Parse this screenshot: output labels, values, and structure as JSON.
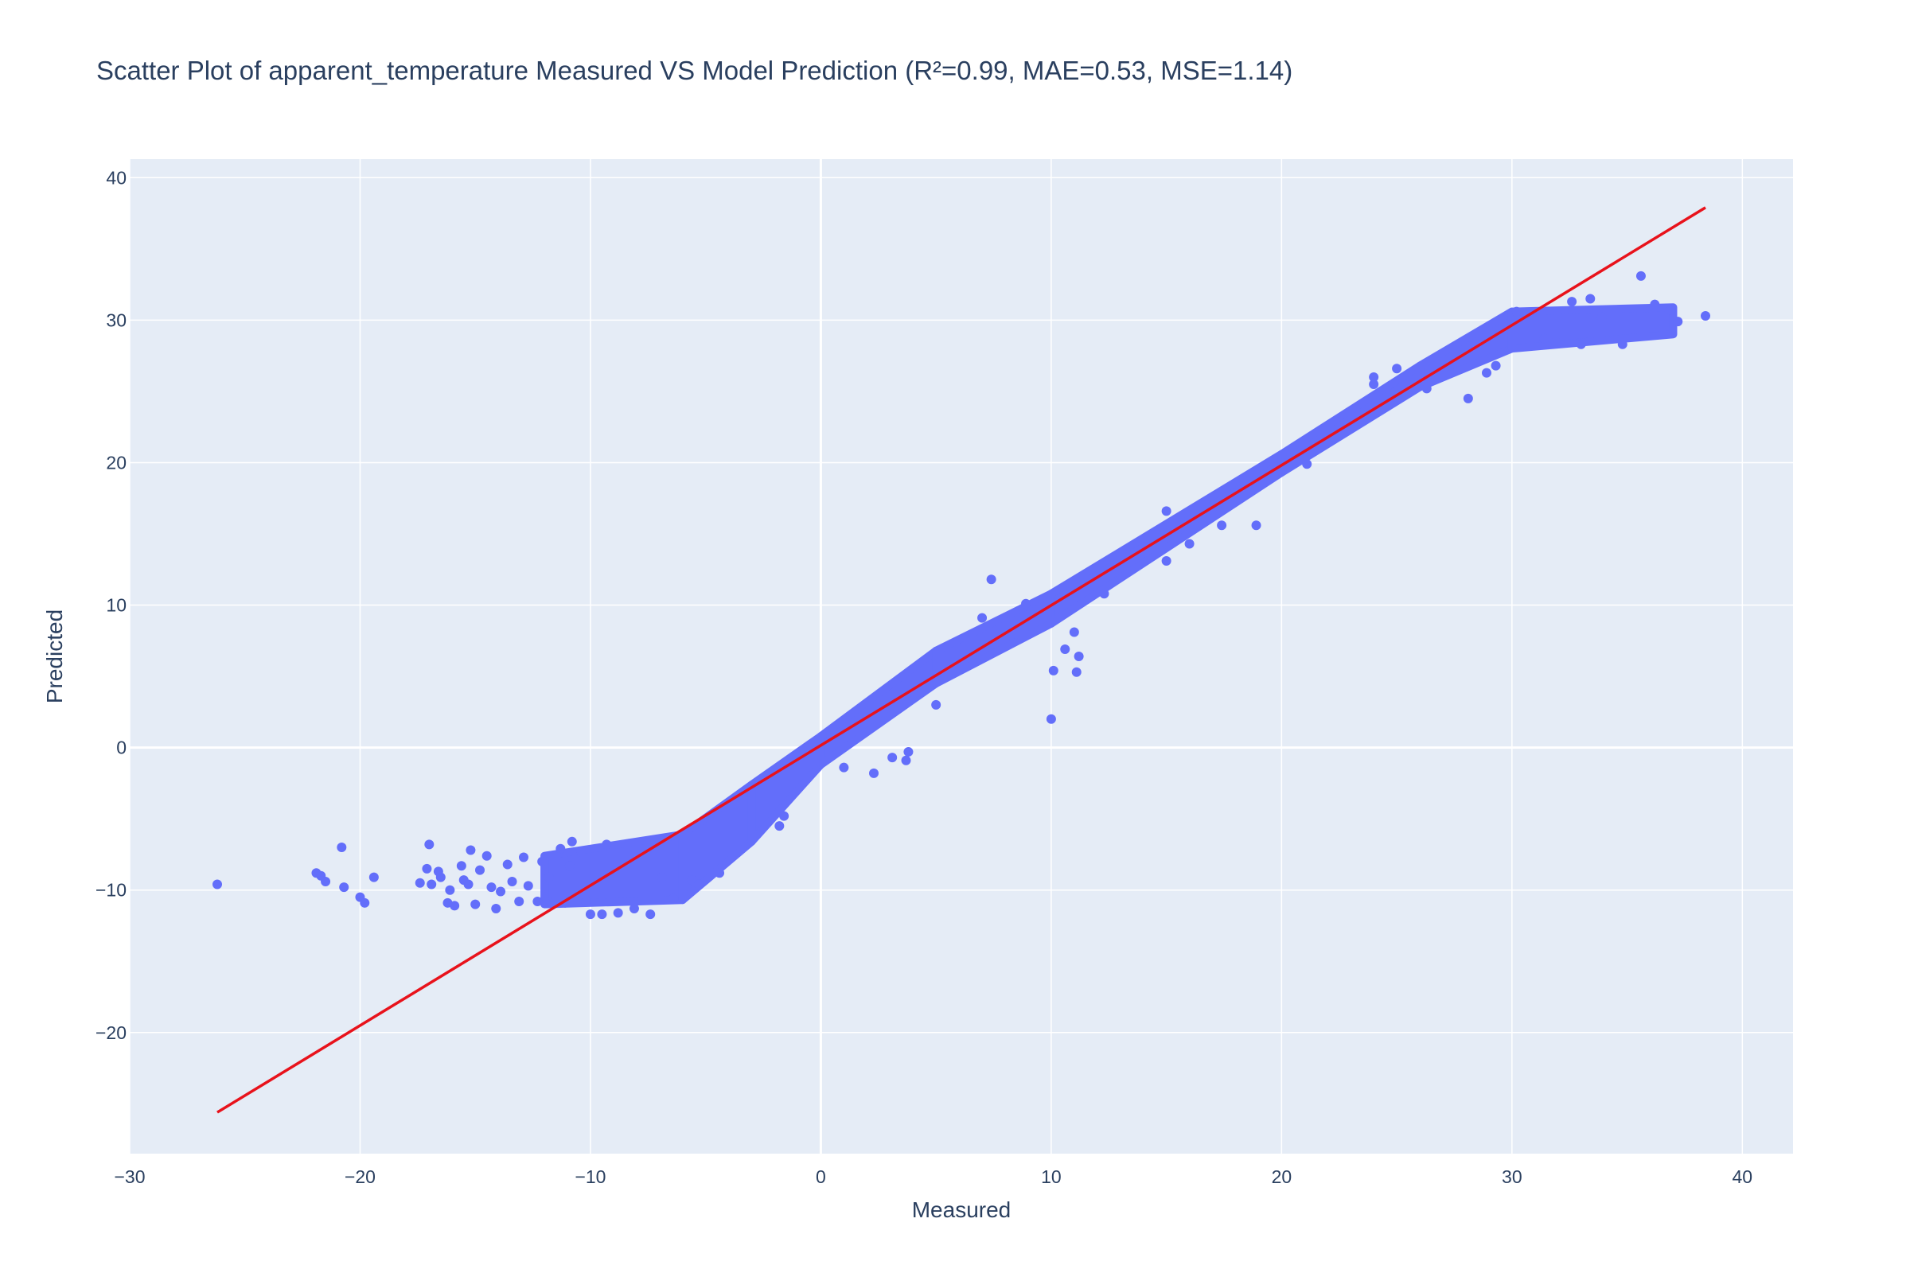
{
  "chart_data": {
    "type": "scatter",
    "title": "Scatter Plot of apparent_temperature Measured VS Model Prediction (R²=0.99, MAE=0.53, MSE=1.14)",
    "xlabel": "Measured",
    "ylabel": "Predicted",
    "xlim": [
      -30,
      42.2
    ],
    "ylim": [
      -28.5,
      41.3
    ],
    "x_ticks": [
      -30,
      -20,
      -10,
      0,
      10,
      20,
      30,
      40
    ],
    "y_ticks": [
      -20,
      -10,
      0,
      10,
      20,
      30,
      40
    ],
    "grid": true,
    "legend": "none",
    "colors": {
      "points": "#636efa",
      "line": "#e8121b",
      "plot_background": "#e5ecf6",
      "grid": "#ffffff",
      "text": "#2a3f5f"
    },
    "series": [
      {
        "kind": "points",
        "points": [
          [
            -26.2,
            -9.6
          ],
          [
            -21.9,
            -8.8
          ],
          [
            -21.7,
            -9.0
          ],
          [
            -21.5,
            -9.4
          ],
          [
            -20.8,
            -7.0
          ],
          [
            -20.7,
            -9.8
          ],
          [
            -20.0,
            -10.5
          ],
          [
            -19.8,
            -10.9
          ],
          [
            -19.4,
            -9.1
          ],
          [
            -17.4,
            -9.5
          ],
          [
            -17.1,
            -8.5
          ],
          [
            -17.0,
            -6.8
          ],
          [
            -16.9,
            -9.6
          ],
          [
            -16.6,
            -8.7
          ],
          [
            -16.5,
            -9.1
          ],
          [
            -16.2,
            -10.9
          ],
          [
            -16.1,
            -10.0
          ],
          [
            -15.9,
            -11.1
          ],
          [
            -15.6,
            -8.3
          ],
          [
            -15.5,
            -9.3
          ],
          [
            -15.3,
            -9.6
          ],
          [
            -15.2,
            -7.2
          ],
          [
            -15.0,
            -11.0
          ],
          [
            -14.8,
            -8.6
          ],
          [
            -14.5,
            -7.6
          ],
          [
            -14.3,
            -9.8
          ],
          [
            -14.1,
            -11.3
          ],
          [
            -13.9,
            -10.1
          ],
          [
            -13.6,
            -8.2
          ],
          [
            -13.4,
            -9.4
          ],
          [
            -13.1,
            -10.8
          ],
          [
            -12.9,
            -7.7
          ],
          [
            -12.7,
            -9.7
          ],
          [
            -12.3,
            -10.8
          ],
          [
            -12.1,
            -8.0
          ],
          [
            -11.8,
            -9.1
          ],
          [
            -11.5,
            -10.5
          ],
          [
            -11.3,
            -7.1
          ],
          [
            -11.1,
            -10.9
          ],
          [
            -10.9,
            -8.3
          ],
          [
            -10.8,
            -6.6
          ],
          [
            -10.4,
            -7.3
          ],
          [
            -10.2,
            -10.8
          ],
          [
            -10.0,
            -11.7
          ],
          [
            -9.5,
            -11.7
          ],
          [
            -9.3,
            -6.8
          ],
          [
            -8.8,
            -11.6
          ],
          [
            -8.1,
            -11.3
          ],
          [
            -7.4,
            -11.7
          ],
          [
            -6.9,
            -9.1
          ],
          [
            -6.4,
            -10.6
          ],
          [
            -5.6,
            -9.3
          ],
          [
            -5.3,
            -9.6
          ],
          [
            -4.4,
            -8.8
          ],
          [
            -1.8,
            -5.5
          ],
          [
            -1.6,
            -4.8
          ],
          [
            1.0,
            -1.4
          ],
          [
            2.3,
            -1.8
          ],
          [
            3.1,
            -0.7
          ],
          [
            3.7,
            -0.9
          ],
          [
            3.8,
            -0.3
          ],
          [
            5.0,
            3.0
          ],
          [
            7.0,
            9.1
          ],
          [
            7.4,
            11.8
          ],
          [
            8.9,
            10.1
          ],
          [
            10.0,
            2.0
          ],
          [
            10.1,
            5.4
          ],
          [
            10.6,
            6.9
          ],
          [
            11.0,
            8.1
          ],
          [
            11.1,
            5.3
          ],
          [
            11.2,
            6.4
          ],
          [
            12.3,
            10.8
          ],
          [
            15.0,
            13.1
          ],
          [
            15.0,
            16.6
          ],
          [
            16.0,
            14.3
          ],
          [
            17.4,
            15.6
          ],
          [
            18.9,
            15.6
          ],
          [
            21.1,
            19.9
          ],
          [
            22.3,
            21.8
          ],
          [
            24.0,
            26.0
          ],
          [
            24.0,
            25.5
          ],
          [
            24.9,
            24.9
          ],
          [
            25.0,
            26.6
          ],
          [
            26.3,
            25.2
          ],
          [
            28.1,
            24.5
          ],
          [
            28.9,
            26.3
          ],
          [
            29.3,
            26.8
          ],
          [
            30.2,
            30.6
          ],
          [
            31.4,
            28.7
          ],
          [
            31.9,
            28.5
          ],
          [
            32.6,
            31.3
          ],
          [
            33.0,
            28.3
          ],
          [
            33.4,
            31.5
          ],
          [
            33.9,
            30.2
          ],
          [
            34.8,
            28.3
          ],
          [
            35.6,
            33.1
          ],
          [
            36.2,
            31.1
          ],
          [
            36.9,
            30.7
          ],
          [
            37.2,
            29.9
          ],
          [
            38.4,
            30.3
          ]
        ],
        "bands": [
          {
            "x_from": -12.0,
            "x_to": -6.0,
            "y_low_from": -11.0,
            "y_low_to": -10.7,
            "y_high_from": -7.6,
            "y_high_to": -6.1
          },
          {
            "x_from": -6.0,
            "x_to": -3.0,
            "y_low_from": -10.7,
            "y_low_to": -6.6,
            "y_high_from": -6.1,
            "y_high_to": -2.6
          },
          {
            "x_from": -3.0,
            "x_to": 0.0,
            "y_low_from": -6.6,
            "y_low_to": -1.2,
            "y_high_from": -2.6,
            "y_high_to": 0.8
          },
          {
            "x_from": 0.0,
            "x_to": 5.0,
            "y_low_from": -1.2,
            "y_low_to": 4.5,
            "y_high_from": 0.8,
            "y_high_to": 6.8
          },
          {
            "x_from": 5.0,
            "x_to": 10.0,
            "y_low_from": 4.5,
            "y_low_to": 8.7,
            "y_high_from": 6.8,
            "y_high_to": 10.8
          },
          {
            "x_from": 10.0,
            "x_to": 20.0,
            "y_low_from": 8.7,
            "y_low_to": 19.3,
            "y_high_from": 10.8,
            "y_high_to": 20.6
          },
          {
            "x_from": 20.0,
            "x_to": 26.0,
            "y_low_from": 19.3,
            "y_low_to": 25.3,
            "y_high_from": 20.6,
            "y_high_to": 26.8
          },
          {
            "x_from": 26.0,
            "x_to": 30.0,
            "y_low_from": 25.3,
            "y_low_to": 28.0,
            "y_high_from": 26.8,
            "y_high_to": 30.6
          },
          {
            "x_from": 30.0,
            "x_to": 37.0,
            "y_low_from": 28.0,
            "y_low_to": 29.0,
            "y_high_from": 30.6,
            "y_high_to": 30.9
          }
        ]
      },
      {
        "kind": "line",
        "x": [
          -26.2,
          38.4
        ],
        "y": [
          -25.6,
          37.9
        ]
      }
    ]
  }
}
